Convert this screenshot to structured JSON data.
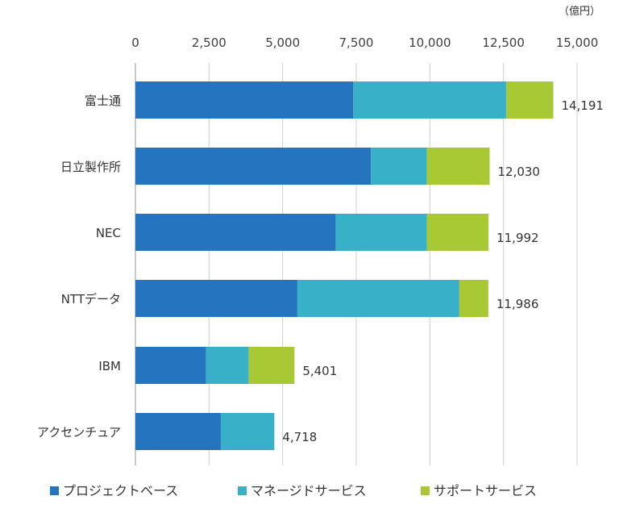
{
  "chart_data": {
    "type": "bar",
    "orientation": "horizontal",
    "stacked": true,
    "unit": "（億円）",
    "categories": [
      "富士通",
      "日立製作所",
      "NEC",
      "NTTデータ",
      "IBM",
      "アクセンチュア"
    ],
    "series": [
      {
        "name": "プロジェクトベース",
        "values": [
          7400,
          8000,
          6800,
          5500,
          2400,
          2900
        ]
      },
      {
        "name": "マネージドサービス",
        "values": [
          5200,
          1900,
          3100,
          5500,
          1450,
          1818
        ]
      },
      {
        "name": "サポートサービス",
        "values": [
          1591,
          2130,
          2092,
          986,
          1551,
          0
        ]
      }
    ],
    "totals": [
      "14,191",
      "12,030",
      "11,992",
      "11,986",
      "5,401",
      "4,718"
    ],
    "x_ticks": [
      "0",
      "2,500",
      "5,000",
      "7,500",
      "10,000",
      "12,500",
      "15,000"
    ],
    "xlim": [
      0,
      15000
    ],
    "x_axis_position": "top",
    "grid": true,
    "legend": "bottom"
  },
  "colors": {
    "series": [
      "#2474BF",
      "#38B0C8",
      "#A8C934"
    ],
    "grid": "#d0d0d0",
    "axis": "#a6a6a6",
    "text": "#333333"
  }
}
